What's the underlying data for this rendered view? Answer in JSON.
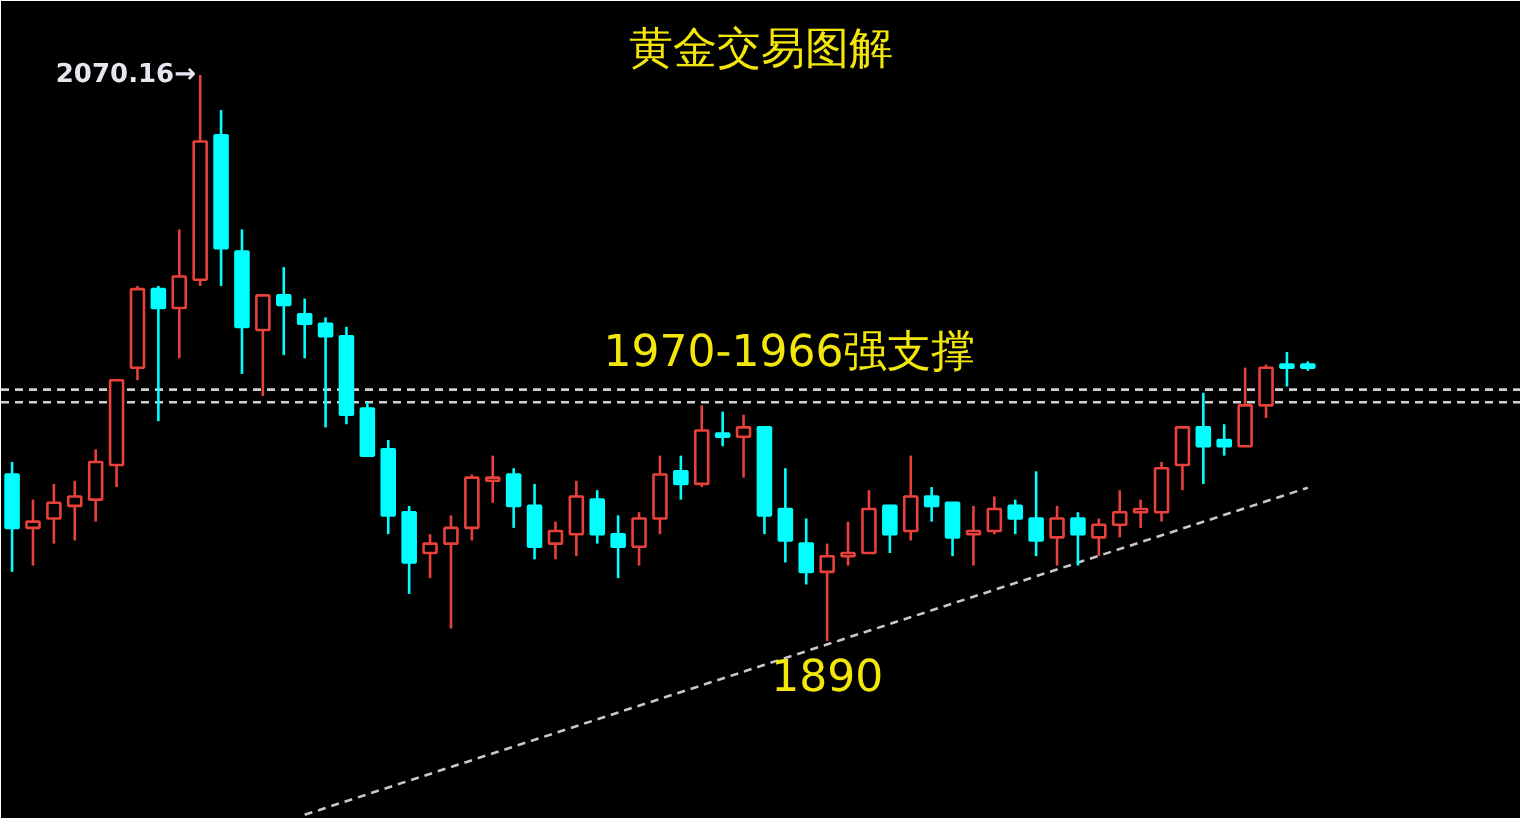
{
  "chart_data": {
    "type": "candlestick",
    "title": "黄金交易图解",
    "categories": [
      null,
      null,
      null,
      null,
      null,
      null,
      null,
      null,
      null,
      null,
      null,
      null,
      null,
      null,
      null,
      null,
      null,
      null,
      null,
      null,
      null,
      null,
      null,
      null,
      null,
      null,
      null,
      null,
      null,
      null,
      null,
      null,
      null,
      null,
      null,
      null,
      null,
      null,
      null,
      null,
      null,
      null,
      null,
      null,
      null,
      null,
      null,
      null,
      null,
      null,
      null,
      null,
      null,
      null,
      null,
      null,
      null,
      null,
      null,
      null,
      null,
      null,
      null
    ],
    "ohlc": [
      [
        1943,
        1947,
        1912,
        1926
      ],
      [
        1926,
        1935,
        1914,
        1928
      ],
      [
        1929,
        1940,
        1921,
        1934
      ],
      [
        1933,
        1941,
        1922,
        1936
      ],
      [
        1935,
        1951,
        1928,
        1947
      ],
      [
        1946,
        1973,
        1939,
        1973
      ],
      [
        1977,
        2003,
        1973,
        2002
      ],
      [
        2002,
        2003,
        1960,
        1996
      ],
      [
        1996,
        2021,
        1980,
        2006
      ],
      [
        2005,
        2070.16,
        2003,
        2049
      ],
      [
        2051,
        2059,
        2003,
        2015
      ],
      [
        2014,
        2021,
        1975,
        1990
      ],
      [
        1989,
        2000,
        1968,
        2000
      ],
      [
        2000,
        2009,
        1981,
        1997
      ],
      [
        1994,
        1999,
        1980,
        1991
      ],
      [
        1991,
        1993,
        1958,
        1987
      ],
      [
        1987,
        1990,
        1959,
        1962
      ],
      [
        1964,
        1966,
        1949,
        1949
      ],
      [
        1951,
        1954,
        1924,
        1930
      ],
      [
        1931,
        1933,
        1905,
        1915
      ],
      [
        1918,
        1924,
        1910,
        1921
      ],
      [
        1921,
        1930,
        1894,
        1926
      ],
      [
        1926,
        1943,
        1922,
        1942
      ],
      [
        1941,
        1949,
        1934,
        1942
      ],
      [
        1943,
        1945,
        1926,
        1933
      ],
      [
        1933,
        1940,
        1916,
        1920
      ],
      [
        1921,
        1928,
        1916,
        1925
      ],
      [
        1924,
        1941,
        1917,
        1936
      ],
      [
        1935,
        1938,
        1921,
        1924
      ],
      [
        1924,
        1930,
        1910,
        1920
      ],
      [
        1920,
        1931,
        1914,
        1929
      ],
      [
        1929,
        1949,
        1924,
        1943
      ],
      [
        1944,
        1949,
        1935,
        1940
      ],
      [
        1940,
        1965,
        1939,
        1957
      ],
      [
        1956,
        1963,
        1952,
        1955
      ],
      [
        1955,
        1962,
        1942,
        1958
      ],
      [
        1958,
        1958,
        1924,
        1930
      ],
      [
        1932,
        1945,
        1915,
        1922
      ],
      [
        1921,
        1929,
        1908,
        1912
      ],
      [
        1912,
        1921,
        1890,
        1917
      ],
      [
        1917,
        1928,
        1914,
        1918
      ],
      [
        1918,
        1938,
        1918,
        1932
      ],
      [
        1933,
        1933,
        1918,
        1924
      ],
      [
        1925,
        1949,
        1922,
        1936
      ],
      [
        1936,
        1939,
        1928,
        1933
      ],
      [
        1934,
        1934,
        1917,
        1923
      ],
      [
        1924,
        1933,
        1914,
        1925
      ],
      [
        1925,
        1936,
        1924,
        1932
      ],
      [
        1933,
        1935,
        1924,
        1929
      ],
      [
        1929,
        1944,
        1917,
        1922
      ],
      [
        1923,
        1933,
        1914,
        1929
      ],
      [
        1929,
        1931,
        1914,
        1924
      ],
      [
        1923,
        1929,
        1917,
        1927
      ],
      [
        1927,
        1938,
        1923,
        1931
      ],
      [
        1931,
        1935,
        1926,
        1932
      ],
      [
        1931,
        1947,
        1928,
        1945
      ],
      [
        1946,
        1958,
        1938,
        1958
      ],
      [
        1958,
        1969,
        1940,
        1952
      ],
      [
        1954,
        1959,
        1949,
        1952
      ],
      [
        1952,
        1977,
        1952,
        1965
      ],
      [
        1965,
        1978,
        1961,
        1977
      ],
      [
        1978,
        1982,
        1971,
        1977
      ],
      [
        1978,
        1979,
        1976,
        1977
      ]
    ],
    "colors": [
      "#00ffff",
      "#e8403a",
      "#e8403a",
      "#e8403a",
      "#e8403a",
      "#e8403a",
      "#e8403a",
      "#00ffff",
      "#e8403a",
      "#e8403a",
      "#00ffff",
      "#00ffff",
      "#e8403a",
      "#00ffff",
      "#00ffff",
      "#00ffff",
      "#00ffff",
      "#00ffff",
      "#00ffff",
      "#00ffff",
      "#e8403a",
      "#e8403a",
      "#e8403a",
      "#e8403a",
      "#00ffff",
      "#00ffff",
      "#e8403a",
      "#e8403a",
      "#00ffff",
      "#00ffff",
      "#e8403a",
      "#e8403a",
      "#00ffff",
      "#e8403a",
      "#00ffff",
      "#e8403a",
      "#00ffff",
      "#00ffff",
      "#00ffff",
      "#e8403a",
      "#e8403a",
      "#e8403a",
      "#00ffff",
      "#e8403a",
      "#00ffff",
      "#00ffff",
      "#e8403a",
      "#e8403a",
      "#00ffff",
      "#00ffff",
      "#e8403a",
      "#00ffff",
      "#e8403a",
      "#e8403a",
      "#e8403a",
      "#e8403a",
      "#e8403a",
      "#00ffff",
      "#00ffff",
      "#e8403a",
      "#e8403a",
      "#00ffff",
      "#00ffff"
    ],
    "series": [
      {
        "type": "line",
        "color": "#c8c8c8",
        "line_style": "dashed",
        "values": [
          null,
          null,
          null,
          null,
          null,
          null,
          null,
          null,
          null,
          null,
          null,
          null,
          null,
          null,
          1834.7,
          null,
          null,
          null,
          null,
          null,
          null,
          null,
          null,
          null,
          null,
          null,
          null,
          null,
          null,
          null,
          null,
          null,
          null,
          null,
          null,
          null,
          null,
          null,
          null,
          null,
          null,
          null,
          null,
          null,
          null,
          null,
          null,
          null,
          null,
          null,
          null,
          null,
          null,
          null,
          null,
          null,
          null,
          null,
          null,
          null,
          null,
          null,
          1938.8
        ]
      }
    ],
    "ref_lines": [
      {
        "axis": "y",
        "value": 1970,
        "color": "#d0d0d0",
        "line_style": "dashed"
      },
      {
        "axis": "y",
        "value": 1966,
        "color": "#d0d0d0",
        "line_style": "dashed"
      }
    ],
    "annotations": [
      "2070.16→",
      "1970-1966强支撑",
      "1890"
    ],
    "grid": false,
    "tick_labels": false
  }
}
